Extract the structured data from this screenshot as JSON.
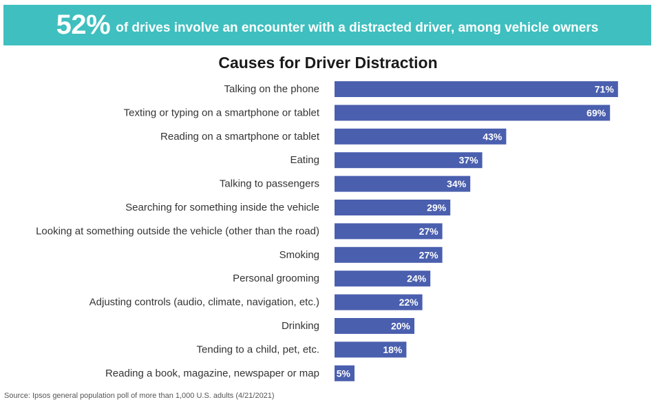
{
  "banner": {
    "big": "52%",
    "text": "of drives involve an encounter with a distracted driver, among vehicle owners"
  },
  "colors": {
    "banner": "#3fbfbf",
    "bar": "#4a5fae",
    "bar_label": "#ffffff"
  },
  "chart_data": {
    "type": "bar",
    "orientation": "horizontal",
    "title": "Causes for Driver Distraction",
    "categories": [
      "Talking on the phone",
      "Texting or typing on a smartphone or tablet",
      "Reading on a smartphone or tablet",
      "Eating",
      "Talking to passengers",
      "Searching for something inside the vehicle",
      "Looking at something outside the vehicle (other than the road)",
      "Smoking",
      "Personal grooming",
      "Adjusting controls (audio, climate, navigation, etc.)",
      "Drinking",
      "Tending to a child, pet, etc.",
      "Reading a book, magazine, newspaper or map"
    ],
    "values": [
      71,
      69,
      43,
      37,
      34,
      29,
      27,
      27,
      24,
      22,
      20,
      18,
      5
    ],
    "value_labels": [
      "71%",
      "69%",
      "43%",
      "37%",
      "34%",
      "29%",
      "27%",
      "27%",
      "24%",
      "22%",
      "20%",
      "18%",
      "5%"
    ],
    "xlim": [
      0,
      100
    ],
    "grid": false,
    "legend": "none"
  },
  "source": "Source: Ipsos general population poll of more than 1,000 U.S. adults (4/21/2021)"
}
